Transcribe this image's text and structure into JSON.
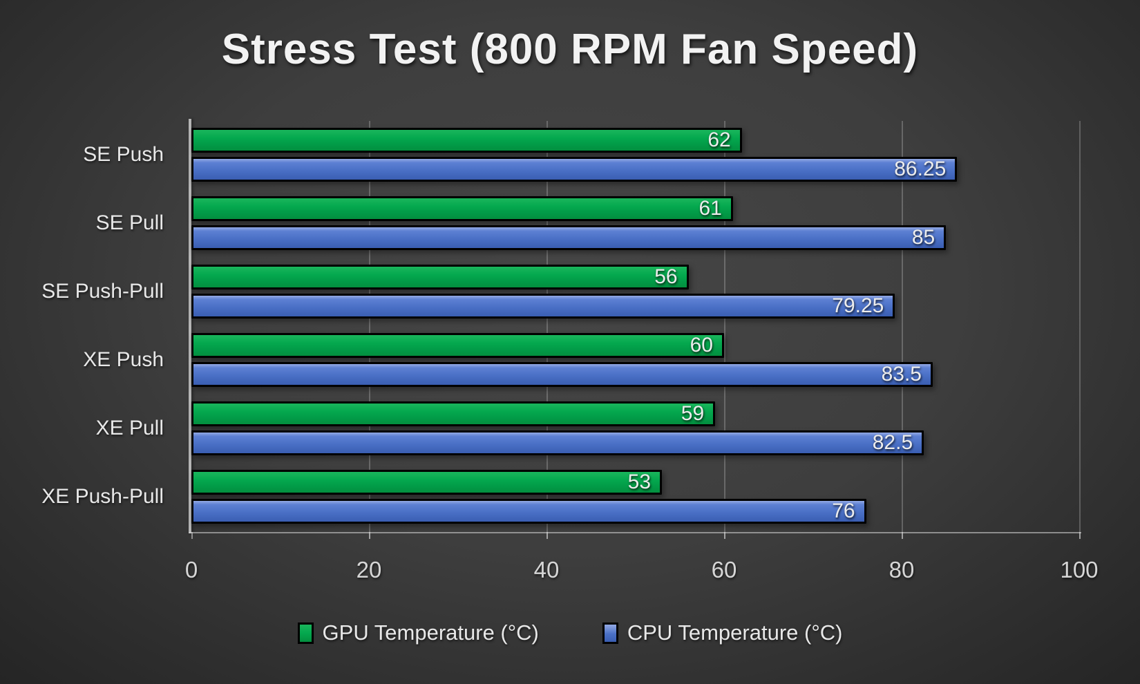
{
  "title": "Stress Test (800 RPM Fan Speed)",
  "colors": {
    "gpu_green": "#04A84E",
    "cpu_blue": "#4A70C6",
    "bar_border": "#000000",
    "axis_line": "#B5B5B5",
    "background_center": "#464646",
    "background_edge": "#222222",
    "label_text": "#E8E8E8"
  },
  "chart_data": {
    "type": "bar",
    "orientation": "horizontal",
    "title": "Stress Test (800 RPM Fan Speed)",
    "categories": [
      "SE Push",
      "SE Pull",
      "SE Push-Pull",
      "XE Push",
      "XE Pull",
      "XE Push-Pull"
    ],
    "series": [
      {
        "name": "GPU Temperature (°C)",
        "color": "#04A84E",
        "values": [
          62,
          61,
          56,
          60,
          59,
          53
        ]
      },
      {
        "name": "CPU Temperature (°C)",
        "color": "#4A70C6",
        "values": [
          86.25,
          85,
          79.25,
          83.5,
          82.5,
          76
        ]
      }
    ],
    "value_labels": [
      "62",
      "86.25",
      "61",
      "85",
      "56",
      "79.25",
      "60",
      "83.5",
      "59",
      "82.5",
      "53",
      "76"
    ],
    "xlim": [
      0,
      100
    ],
    "x_ticks": [
      0,
      20,
      40,
      60,
      80,
      100
    ],
    "grid": true,
    "legend_position": "bottom"
  },
  "legend": {
    "items": [
      {
        "label": "GPU Temperature (°C)",
        "color": "#04A84E"
      },
      {
        "label": "CPU Temperature (°C)",
        "color": "#4A70C6"
      }
    ]
  }
}
